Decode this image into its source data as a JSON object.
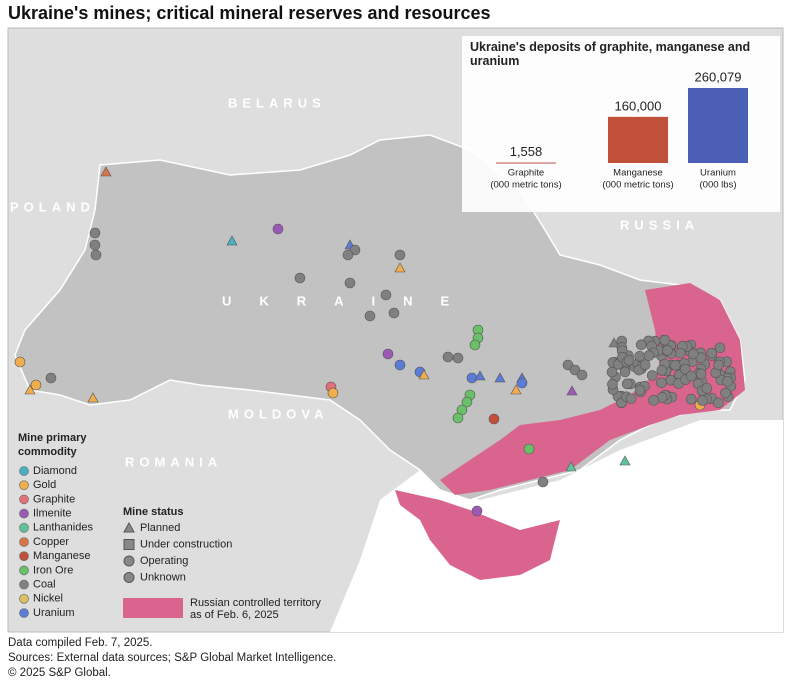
{
  "title": "Ukraine's mines; critical mineral reserves and resources",
  "map_labels": {
    "belarus": "BELARUS",
    "poland": "POLAND",
    "russia": "RUSSIA",
    "ukraine": "UKRAINE",
    "moldova": "MOLDOVA",
    "romania": "ROMANIA"
  },
  "legend": {
    "title": "Mine primary commodity",
    "items": [
      {
        "label": "Diamond",
        "color": "#4ab0c1"
      },
      {
        "label": "Gold",
        "color": "#f0ad4e"
      },
      {
        "label": "Graphite",
        "color": "#e07079"
      },
      {
        "label": "Ilmenite",
        "color": "#9b59b6"
      },
      {
        "label": "Lanthanides",
        "color": "#5fc39a"
      },
      {
        "label": "Copper",
        "color": "#d9744a"
      },
      {
        "label": "Manganese",
        "color": "#c0503a"
      },
      {
        "label": "Iron Ore",
        "color": "#6abf69"
      },
      {
        "label": "Coal",
        "color": "#808080"
      },
      {
        "label": "Nickel",
        "color": "#dcc060"
      },
      {
        "label": "Uranium",
        "color": "#5b7bd5"
      }
    ]
  },
  "status_legend": {
    "title": "Mine status",
    "items": [
      "Planned",
      "Under construction",
      "Operating",
      "Unknown"
    ]
  },
  "territory_legend": {
    "label": "Russian controlled territory as of Feb. 6, 2025",
    "color": "#d9658f"
  },
  "chart_data": {
    "type": "bar",
    "title": "Ukraine's deposits of graphite, manganese and uranium",
    "categories": [
      "Graphite",
      "Manganese",
      "Uranium"
    ],
    "units": [
      "(000 metric tons)",
      "(000 metric tons)",
      "(000 lbs)"
    ],
    "values": [
      1558,
      160000,
      260079
    ],
    "value_labels": [
      "1,558",
      "160,000",
      "260,079"
    ],
    "colors": [
      "#c0504d",
      "#c0503a",
      "#4a5fb5"
    ]
  },
  "footnotes": [
    "Data compiled Feb. 7, 2025.",
    "Sources: External data sources; S&P Global Market Intelligence.",
    "© 2025 S&P Global."
  ]
}
